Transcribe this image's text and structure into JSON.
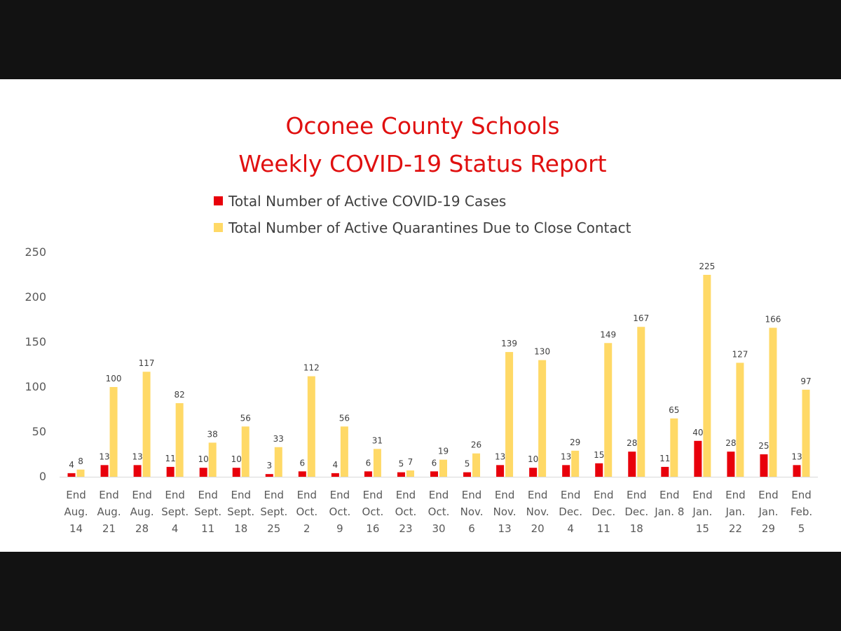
{
  "chart_data": {
    "type": "bar",
    "title": [
      "Oconee County Schools",
      "Weekly COVID-19 Status Report"
    ],
    "xlabel": "",
    "ylabel": "",
    "ylim": [
      0,
      250
    ],
    "yticks": [
      "0",
      "50",
      "100",
      "150",
      "200",
      "250"
    ],
    "grid": false,
    "legend_position": "top",
    "categories": [
      [
        "End",
        "Aug.",
        "14"
      ],
      [
        "End",
        "Aug.",
        "21"
      ],
      [
        "End",
        "Aug.",
        "28"
      ],
      [
        "End",
        "Sept.",
        "4"
      ],
      [
        "End",
        "Sept.",
        "11"
      ],
      [
        "End",
        "Sept.",
        "18"
      ],
      [
        "End",
        "Sept.",
        "25"
      ],
      [
        "End",
        "Oct.",
        "2"
      ],
      [
        "End",
        "Oct.",
        "9"
      ],
      [
        "End",
        "Oct.",
        "16"
      ],
      [
        "End",
        "Oct.",
        "23"
      ],
      [
        "End",
        "Oct.",
        "30"
      ],
      [
        "End",
        "Nov.",
        "6"
      ],
      [
        "End",
        "Nov.",
        "13"
      ],
      [
        "End",
        "Nov.",
        "20"
      ],
      [
        "End",
        "Dec.",
        "4"
      ],
      [
        "End",
        "Dec.",
        "11"
      ],
      [
        "End",
        "Dec.",
        "18"
      ],
      [
        "End",
        "Jan. 8"
      ],
      [
        "End",
        "Jan.",
        "15"
      ],
      [
        "End",
        "Jan.",
        "22"
      ],
      [
        "End",
        "Jan.",
        "29"
      ],
      [
        "End",
        "Feb.",
        "5"
      ]
    ],
    "series": [
      {
        "name": "Total Number of Active COVID-19 Cases",
        "color": "#e8000b",
        "values": [
          4,
          13,
          13,
          11,
          10,
          10,
          3,
          6,
          4,
          6,
          5,
          6,
          5,
          13,
          10,
          13,
          15,
          28,
          11,
          40,
          28,
          25,
          13
        ]
      },
      {
        "name": "Total Number of Active Quarantines Due to Close Contact",
        "color": "#ffd966",
        "values": [
          8,
          100,
          117,
          82,
          38,
          56,
          33,
          112,
          56,
          31,
          7,
          19,
          26,
          139,
          130,
          29,
          149,
          167,
          65,
          225,
          127,
          166,
          97
        ]
      }
    ]
  }
}
